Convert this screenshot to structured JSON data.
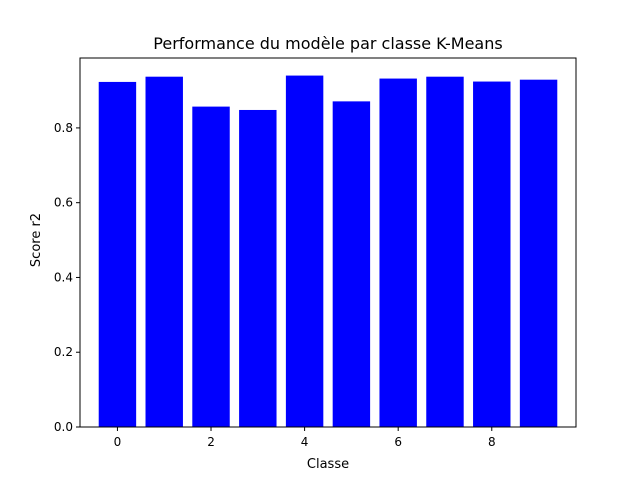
{
  "chart_data": {
    "type": "bar",
    "title": "Performance du modèle par classe K-Means",
    "xlabel": "Classe",
    "ylabel": "Score r2",
    "categories": [
      0,
      1,
      2,
      3,
      4,
      5,
      6,
      7,
      8,
      9
    ],
    "values": [
      0.923,
      0.937,
      0.857,
      0.848,
      0.94,
      0.871,
      0.932,
      0.937,
      0.924,
      0.929
    ],
    "xlim": [
      -0.8,
      9.8
    ],
    "ylim": [
      0,
      0.987
    ],
    "xticks": [
      0,
      2,
      4,
      6,
      8
    ],
    "xtick_labels": [
      "0",
      "2",
      "4",
      "6",
      "8"
    ],
    "yticks": [
      0.0,
      0.2,
      0.4,
      0.6,
      0.8
    ],
    "ytick_labels": [
      "0.0",
      "0.2",
      "0.4",
      "0.6",
      "0.8"
    ],
    "bar_color": "#0000ff",
    "grid": false,
    "legend": "none"
  }
}
